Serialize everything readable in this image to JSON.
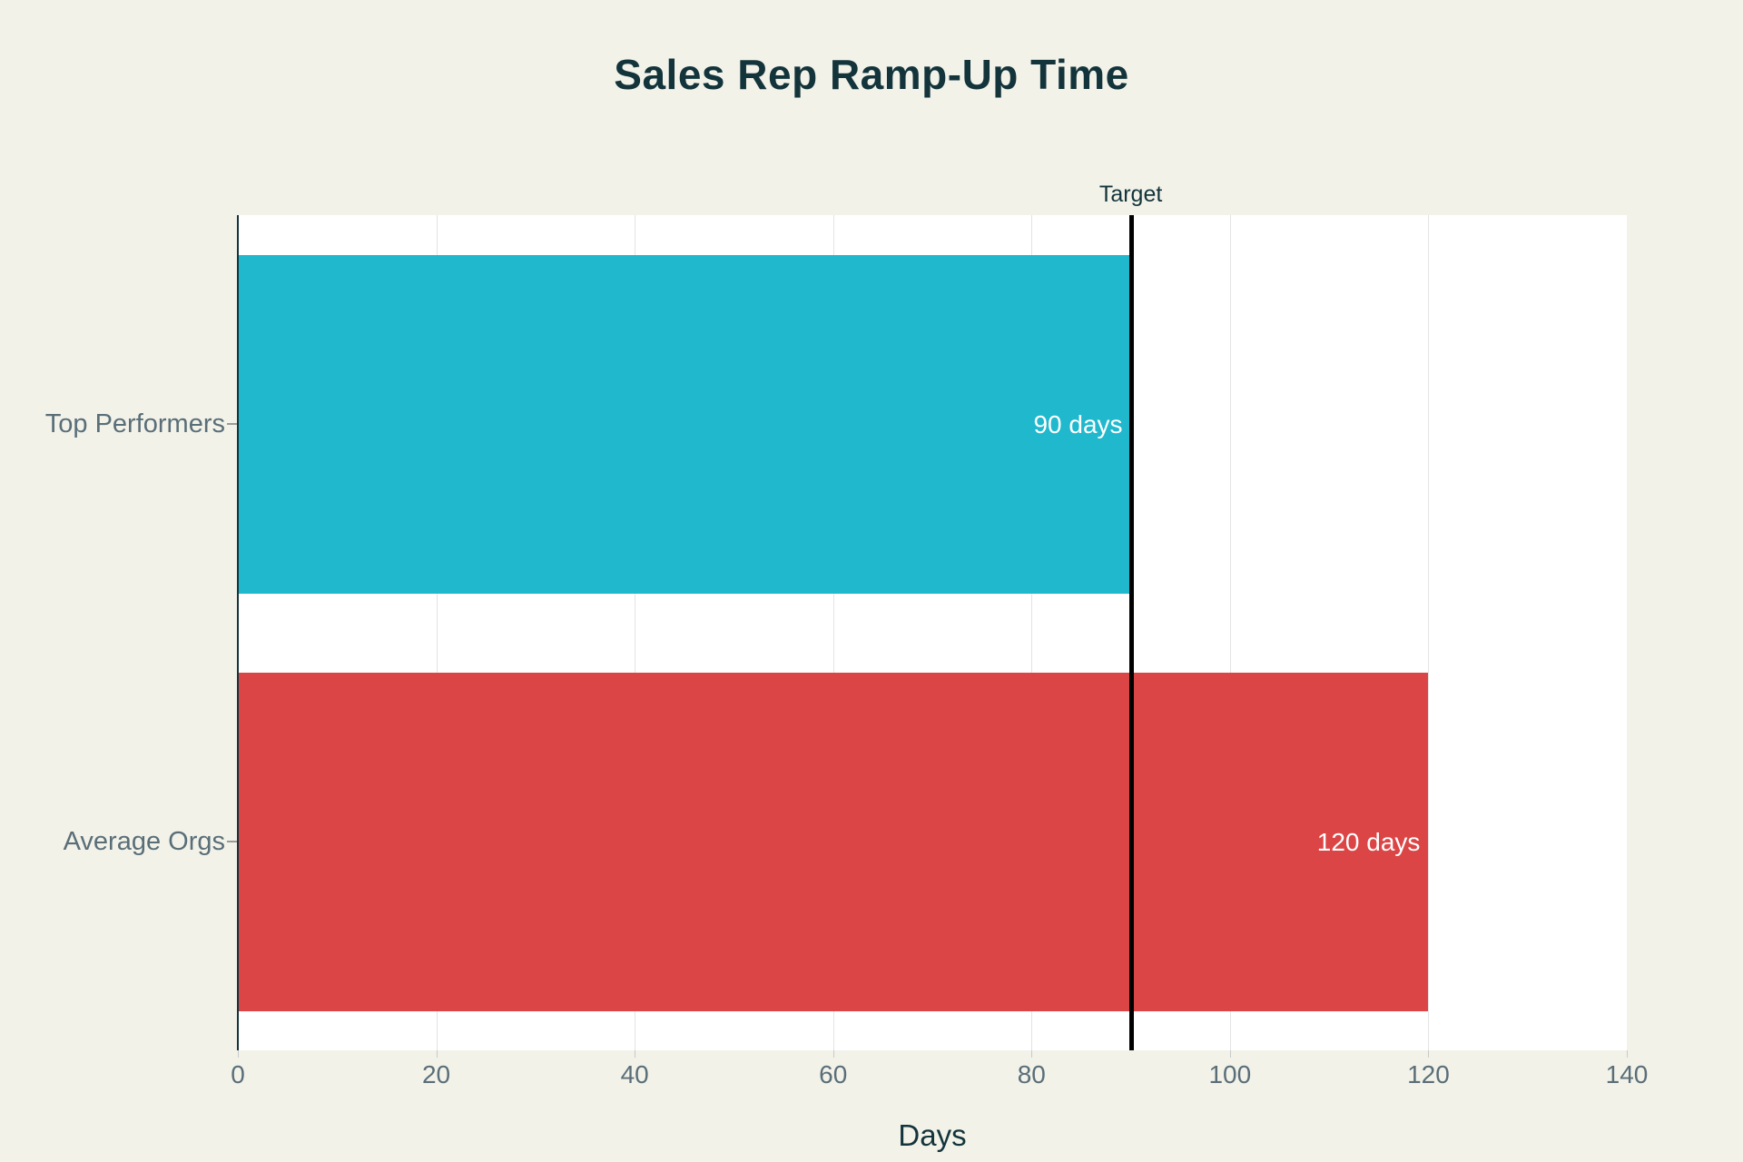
{
  "chart_data": {
    "type": "bar",
    "orientation": "horizontal",
    "title": "Sales Rep Ramp-Up Time",
    "categories": [
      "Top Performers",
      "Average Orgs"
    ],
    "values": [
      90,
      120
    ],
    "value_labels": [
      "90 days",
      "120 days"
    ],
    "bar_colors": [
      "#1FB8CD",
      "#DB4545"
    ],
    "xlabel": "Days",
    "xlim": [
      0,
      140
    ],
    "xticks": [
      0,
      20,
      40,
      60,
      80,
      100,
      120,
      140
    ],
    "target": {
      "label": "Target",
      "value": 90,
      "color": "#000000"
    },
    "grid": "vertical-only",
    "legend": "none",
    "colors": {
      "background": "#F2F2E9",
      "plot_background": "#FFFFFF",
      "title_text": "#13343B",
      "axis_text": "#5A6E78",
      "gridline": "#E3E3E3",
      "bar_value_text": "#FFFFFF",
      "target_line": "#000000"
    }
  }
}
